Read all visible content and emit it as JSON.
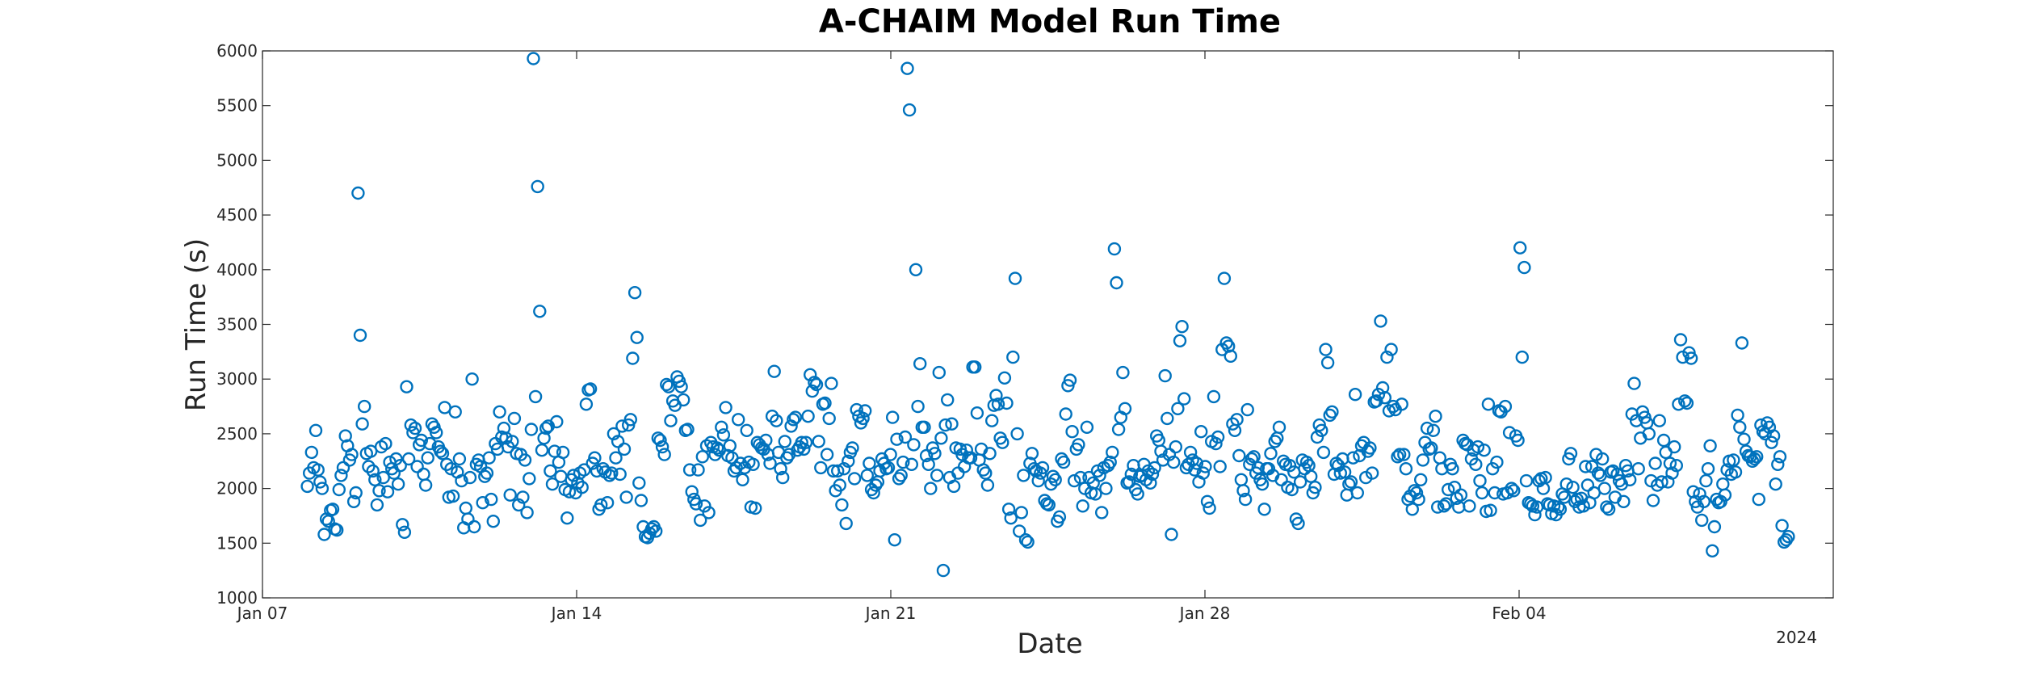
{
  "chart_data": {
    "type": "scatter",
    "title": "A-CHAIM Model Run Time",
    "xlabel": "Date",
    "ylabel": "Run Time (s)",
    "x_year_label": "2024",
    "x_unit": "date",
    "xlim": [
      "2024-01-07",
      "2024-02-11"
    ],
    "ylim": [
      1000,
      6000
    ],
    "x_ticks": [
      {
        "date": "2024-01-07",
        "label": "Jan 07"
      },
      {
        "date": "2024-01-14",
        "label": "Jan 14"
      },
      {
        "date": "2024-01-21",
        "label": "Jan 21"
      },
      {
        "date": "2024-01-28",
        "label": "Jan 28"
      },
      {
        "date": "2024-02-04",
        "label": "Feb 04"
      }
    ],
    "y_ticks": [
      1000,
      1500,
      2000,
      2500,
      3000,
      3500,
      4000,
      4500,
      5000,
      5500,
      6000
    ],
    "grid": false,
    "marker": "circle-open",
    "colors": {
      "marker": "#0072BD",
      "axis": "#262626"
    },
    "series": [
      {
        "y_values": [
          2020,
          2140,
          2330,
          2190,
          2530,
          2170,
          2060,
          2000,
          1580,
          1720,
          1700,
          1800,
          1810,
          1630,
          1620,
          1990,
          2120,
          2190,
          2480,
          2390,
          2260,
          2310,
          1880,
          1960,
          4700,
          3400,
          2590,
          2750,
          2320,
          2200,
          2340,
          2160,
          2080,
          1850,
          1980,
          2380,
          2100,
          2410,
          1970,
          2240,
          2180,
          2140,
          2270,
          2040,
          2210,
          1670,
          1600,
          2930,
          2270,
          2580,
          2510,
          2550,
          2200,
          2400,
          2440,
          2130,
          2030,
          2280,
          2410,
          2590,
          2560,
          2510,
          2380,
          2340,
          2320,
          2740,
          2220,
          1920,
          2180,
          1930,
          2700,
          2150,
          2270,
          2070,
          1640,
          1820,
          1720,
          2100,
          3000,
          1650,
          2220,
          2260,
          2200,
          1870,
          2110,
          2140,
          2280,
          1900,
          1700,
          2410,
          2360,
          2700,
          2470,
          2550,
          2460,
          2380,
          1940,
          2430,
          2640,
          2320,
          1850,
          2310,
          1920,
          2260,
          1780,
          2090,
          2540,
          5930,
          2840,
          4760,
          3620,
          2350,
          2460,
          2550,
          2570,
          2160,
          2040,
          2340,
          2610,
          2240,
          2110,
          2330,
          1990,
          1730,
          1970,
          2080,
          2120,
          1960,
          2050,
          2140,
          2010,
          2170,
          2770,
          2900,
          2910,
          2230,
          2280,
          2160,
          1810,
          1850,
          2180,
          2150,
          1870,
          2120,
          2140,
          2500,
          2280,
          2430,
          2130,
          2570,
          2360,
          1920,
          2580,
          2630,
          3190,
          3790,
          3380,
          2050,
          1890,
          1650,
          1560,
          1550,
          1590,
          1630,
          1650,
          1610,
          2460,
          2440,
          2380,
          2310,
          2950,
          2930,
          2620,
          2800,
          2760,
          3020,
          2980,
          2930,
          2810,
          2530,
          2540,
          2170,
          1970,
          1900,
          1860,
          2170,
          1710,
          2290,
          1840,
          2390,
          1780,
          2420,
          2380,
          2310,
          2370,
          2350,
          2560,
          2490,
          2740,
          2300,
          2390,
          2280,
          2160,
          2190,
          2630,
          2230,
          2080,
          2190,
          2530,
          2240,
          1830,
          2220,
          1820,
          2420,
          2400,
          2370,
          2360,
          2440,
          2310,
          2230,
          2660,
          3070,
          2620,
          2330,
          2180,
          2100,
          2430,
          2280,
          2310,
          2570,
          2630,
          2650,
          2350,
          2380,
          2420,
          2360,
          2420,
          2660,
          3040,
          2890,
          2970,
          2950,
          2430,
          2190,
          2770,
          2780,
          2310,
          2640,
          2960,
          2160,
          1980,
          2160,
          2030,
          1850,
          2180,
          1680,
          2250,
          2330,
          2370,
          2090,
          2720,
          2660,
          2600,
          2640,
          2710,
          2120,
          2230,
          1990,
          1960,
          2030,
          2060,
          2160,
          2270,
          2230,
          2180,
          2190,
          2310,
          2650,
          1530,
          2450,
          2090,
          2120,
          2240,
          2470,
          5840,
          5460,
          2220,
          2400,
          4000,
          2750,
          3140,
          2560,
          2560,
          2300,
          2220,
          2000,
          2370,
          2320,
          2120,
          3060,
          2460,
          1250,
          2580,
          2810,
          2100,
          2590,
          2020,
          2370,
          2140,
          2360,
          2310,
          2200,
          2350,
          2280,
          2280,
          3110,
          3110,
          2690,
          2260,
          2360,
          2170,
          2140,
          2030,
          2320,
          2620,
          2760,
          2850,
          2770,
          2460,
          2420,
          3010,
          2780,
          1810,
          1730,
          3200,
          3920,
          2500,
          1610,
          1780,
          2120,
          1530,
          1510,
          2230,
          2320,
          2180,
          2160,
          2070,
          2140,
          2190,
          1890,
          1860,
          1850,
          2040,
          2110,
          2080,
          1700,
          1740,
          2270,
          2240,
          2680,
          2940,
          2990,
          2520,
          2070,
          2360,
          2400,
          2100,
          1840,
          2000,
          2560,
          2100,
          1960,
          2050,
          1950,
          2160,
          2120,
          1780,
          2190,
          2000,
          2210,
          2240,
          2330,
          4190,
          3880,
          2540,
          2650,
          3060,
          2730,
          2050,
          2060,
          2130,
          2210,
          1990,
          1950,
          2110,
          2120,
          2220,
          2080,
          2160,
          2050,
          2130,
          2190,
          2480,
          2440,
          2340,
          2260,
          3030,
          2640,
          2310,
          1580,
          2240,
          2380,
          2730,
          3350,
          3480,
          2820,
          2190,
          2220,
          2330,
          2260,
          2170,
          2230,
          2060,
          2520,
          2140,
          2200,
          1880,
          1820,
          2430,
          2840,
          2410,
          2470,
          2200,
          3270,
          3920,
          3330,
          3300,
          3210,
          2590,
          2530,
          2630,
          2300,
          2080,
          1980,
          1900,
          2720,
          2220,
          2270,
          2290,
          2140,
          2190,
          2080,
          2040,
          1810,
          2180,
          2180,
          2320,
          2120,
          2430,
          2460,
          2560,
          2080,
          2250,
          2220,
          2010,
          2210,
          1990,
          2150,
          1720,
          1680,
          2060,
          2260,
          2180,
          2240,
          2210,
          2110,
          1960,
          2010,
          2470,
          2580,
          2530,
          2330,
          3270,
          3150,
          2670,
          2700,
          2130,
          2230,
          2210,
          2140,
          2270,
          2150,
          1940,
          2040,
          2060,
          2280,
          2860,
          1960,
          2300,
          2390,
          2420,
          2100,
          2340,
          2370,
          2140,
          2790,
          2800,
          2860,
          3530,
          2920,
          2830,
          3200,
          2710,
          3270,
          2750,
          2720,
          2290,
          2310,
          2770,
          2310,
          2180,
          1900,
          1930,
          1810,
          1980,
          1960,
          1900,
          2080,
          2260,
          2420,
          2550,
          2360,
          2370,
          2530,
          2660,
          1830,
          2280,
          2180,
          1840,
          1860,
          1990,
          2220,
          2180,
          2010,
          1910,
          1830,
          1940,
          2440,
          2410,
          2400,
          1840,
          2270,
          2350,
          2220,
          2380,
          2070,
          1960,
          2350,
          1790,
          2770,
          1800,
          2180,
          1960,
          2240,
          2710,
          2700,
          1950,
          2750,
          1960,
          2510,
          2000,
          1980,
          2480,
          2440,
          4200,
          3200,
          4020,
          2070,
          1870,
          1860,
          1840,
          1760,
          1830,
          2070,
          2090,
          2000,
          2100,
          1860,
          1850,
          1770,
          1840,
          1760,
          1830,
          1810,
          1950,
          1920,
          2040,
          2270,
          2320,
          2010,
          1880,
          1900,
          1830,
          1910,
          1840,
          2200,
          2030,
          1870,
          2200,
          1960,
          2310,
          2140,
          2120,
          2270,
          2000,
          1830,
          1810,
          2150,
          2160,
          1920,
          2130,
          2070,
          2040,
          1880,
          2210,
          2160,
          2080,
          2680,
          2960,
          2620,
          2180,
          2460,
          2700,
          2650,
          2600,
          2500,
          2070,
          1890,
          2230,
          2030,
          2620,
          2060,
          2440,
          2330,
          2060,
          2230,
          2140,
          2380,
          2210,
          2770,
          3360,
          3200,
          2800,
          2780,
          3240,
          3190,
          1970,
          1880,
          1830,
          1950,
          1710,
          1880,
          2070,
          2180,
          2390,
          1430,
          1650,
          1900,
          1870,
          1880,
          2040,
          1940,
          2170,
          2250,
          2130,
          2260,
          2150,
          2670,
          2560,
          3330,
          2450,
          2340,
          2300,
          2290,
          2250,
          2270,
          2290,
          1900,
          2580,
          2520,
          2500,
          2600,
          2560,
          2420,
          2480,
          2040,
          2220,
          2290,
          1660,
          1510,
          1530,
          1560
        ],
        "date_range": [
          "2024-01-08",
          "2024-02-10"
        ]
      }
    ]
  }
}
